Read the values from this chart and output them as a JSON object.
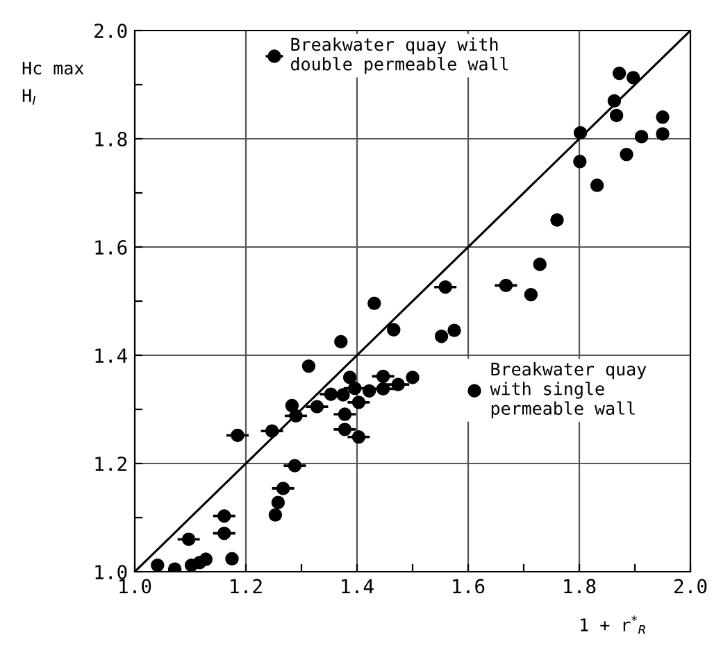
{
  "chart_data": {
    "type": "scatter",
    "ylabel": "Hc max\nH$_{I}$",
    "xlabel": "1 + r$^{*}$$_{R}$",
    "xlim": [
      1.0,
      2.0
    ],
    "ylim": [
      1.0,
      2.0
    ],
    "xticks": [
      {
        "value": 1,
        "label": "1.0"
      },
      {
        "value": 1.1,
        "label": null
      },
      1.2,
      {
        "value": 1.3,
        "label": null
      },
      1.4,
      {
        "value": 1.5,
        "label": null
      },
      1.6,
      {
        "value": 1.7,
        "label": null
      },
      1.8,
      {
        "value": 1.9,
        "label": null
      },
      {
        "value": 2,
        "label": "2.0"
      }
    ],
    "yticks": [
      {
        "value": 1,
        "label": "1.0"
      },
      {
        "value": 1.1,
        "label": null
      },
      1.2,
      {
        "value": 1.3,
        "label": null
      },
      1.4,
      {
        "value": 1.5,
        "label": null
      },
      1.6,
      {
        "value": 1.7,
        "label": null
      },
      1.8,
      {
        "value": 1.9,
        "label": null
      },
      {
        "value": 2,
        "label": "2.0"
      }
    ],
    "grid": true,
    "legend": "top",
    "marker": "circle",
    "series": [
      {
        "name": "Breakwater quay with\ndouble permeable wall",
        "color": "#000000",
        "x": [
          1.668,
          1.559,
          1.447,
          1.396,
          1.447,
          1.474,
          1.353,
          1.403,
          1.328,
          1.29,
          1.378,
          1.378,
          1.403,
          1.247,
          1.185,
          1.288,
          1.267,
          1.161,
          1.161,
          1.097
        ],
        "values": [
          1.529,
          1.526,
          1.361,
          1.339,
          1.338,
          1.346,
          1.328,
          1.313,
          1.305,
          1.288,
          1.291,
          1.263,
          1.249,
          1.26,
          1.252,
          1.196,
          1.154,
          1.103,
          1.071,
          1.06
        ],
        "xerrors": [
          0.02,
          0.02,
          0.02,
          0.02,
          0.02,
          0.02,
          0.02,
          0.02,
          0.02,
          0.02,
          0.02,
          0.02,
          0.02,
          0.02,
          0.02,
          0.02,
          0.02,
          0.02,
          0.02,
          0.02
        ]
      },
      {
        "name": "Breakwater quay\nwith single\npermeable wall",
        "color": "#000000",
        "x": [
          1.872,
          1.897,
          1.863,
          1.867,
          1.95,
          1.95,
          1.912,
          1.802,
          1.801,
          1.885,
          1.832,
          1.76,
          1.729,
          1.713,
          1.431,
          1.466,
          1.552,
          1.575,
          1.371,
          1.313,
          1.387,
          1.5,
          1.422,
          1.375,
          1.283,
          1.258,
          1.253,
          1.175,
          1.128,
          1.117,
          1.102,
          1.072,
          1.041
        ],
        "values": [
          1.921,
          1.913,
          1.87,
          1.843,
          1.84,
          1.809,
          1.804,
          1.811,
          1.758,
          1.771,
          1.714,
          1.65,
          1.568,
          1.512,
          1.496,
          1.447,
          1.435,
          1.446,
          1.425,
          1.38,
          1.359,
          1.359,
          1.334,
          1.327,
          1.307,
          1.128,
          1.105,
          1.024,
          1.023,
          1.017,
          1.012,
          1.005,
          1.012
        ]
      },
      {
        "type": "line",
        "color": "#000000",
        "x": [
          1.0,
          2.0
        ],
        "values": [
          1.0,
          2.0
        ],
        "marker": "none"
      }
    ]
  }
}
